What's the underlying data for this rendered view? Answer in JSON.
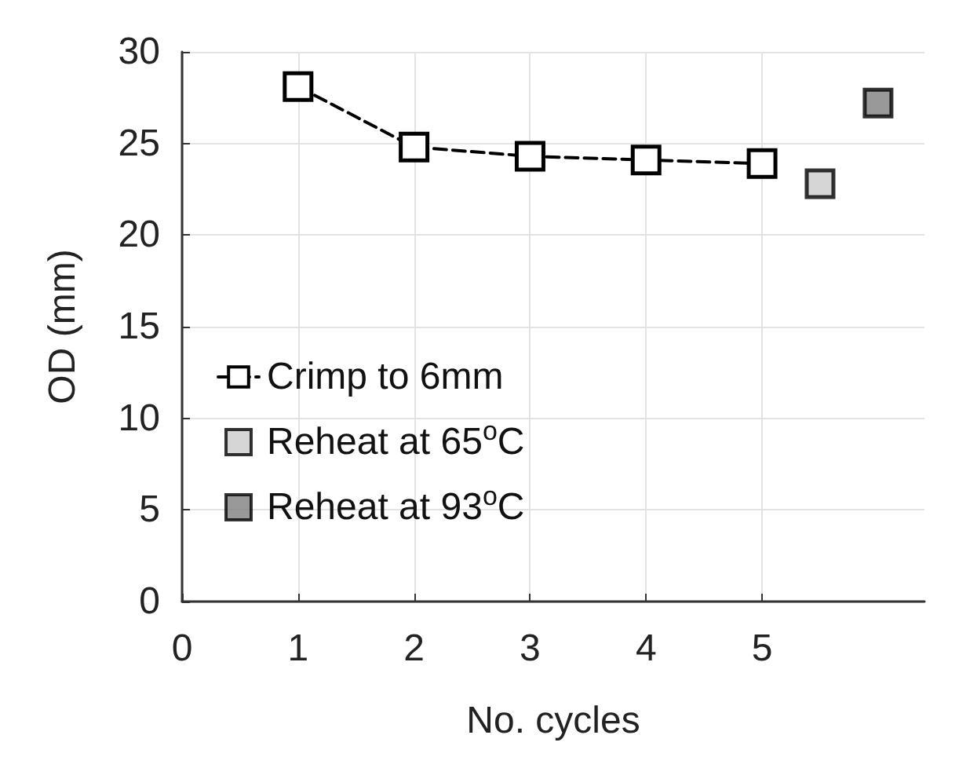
{
  "chart_data": {
    "type": "scatter",
    "xlabel": "No. cycles",
    "ylabel": "OD (mm)",
    "xlim": [
      0,
      6.4
    ],
    "xticks": [
      0,
      1,
      2,
      3,
      4,
      5
    ],
    "ylim": [
      0,
      30
    ],
    "yticks": [
      0,
      5,
      10,
      15,
      20,
      25,
      30
    ],
    "grid": true,
    "legend": "left",
    "marker": "square",
    "series": [
      {
        "name": "Crimp to 6mm",
        "type": "line",
        "line_style": "dashed",
        "color": "#ffffff",
        "x": [
          1,
          2,
          3,
          4,
          5
        ],
        "values": [
          28.1,
          24.8,
          24.3,
          24.1,
          23.9
        ]
      },
      {
        "name": "Reheat at 65$^{o}$C",
        "color": "#cccccc",
        "x": [
          5.5
        ],
        "values": [
          22.8
        ]
      },
      {
        "name": "Reheat at 93$^{o}$C",
        "color": "#808080",
        "x": [
          6
        ],
        "values": [
          27.2
        ]
      }
    ]
  }
}
